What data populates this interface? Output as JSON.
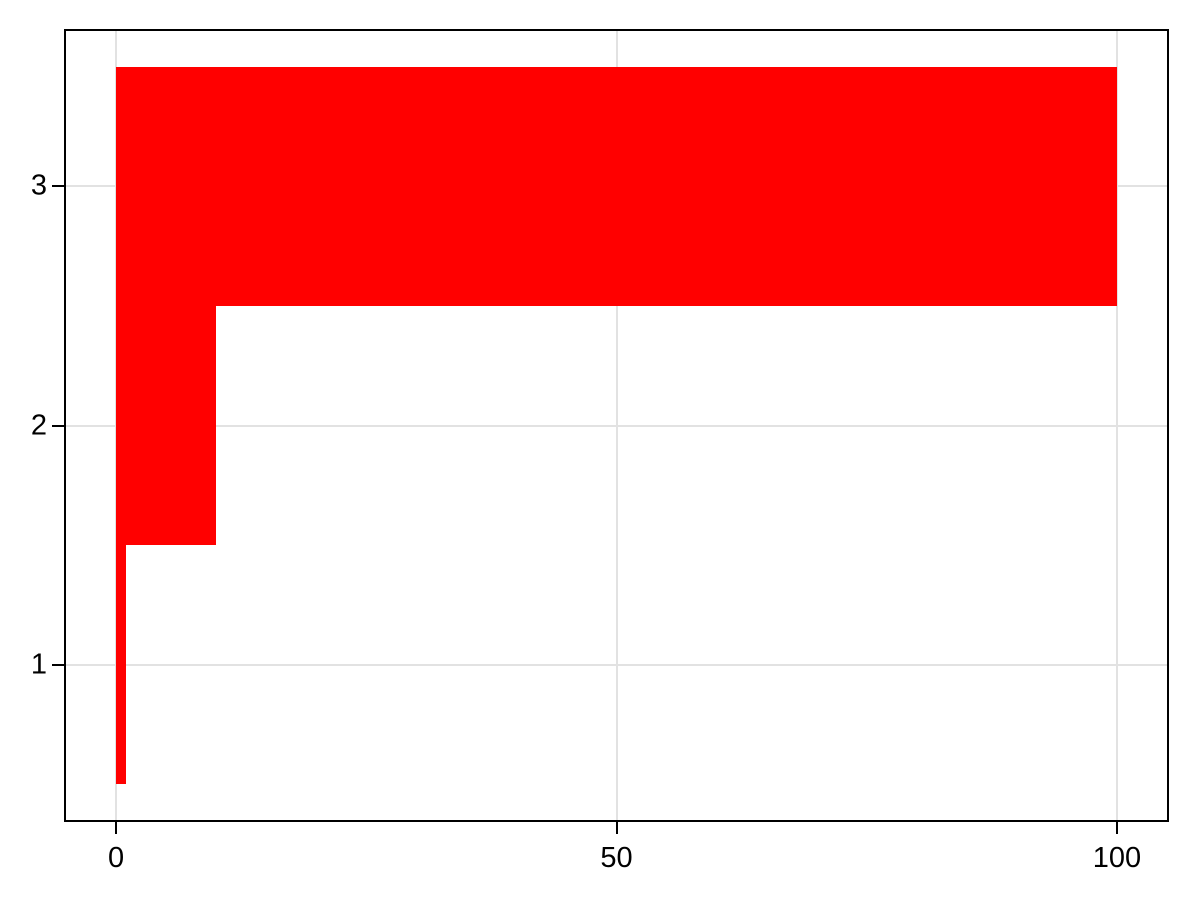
{
  "chart_data": {
    "type": "bar",
    "orientation": "horizontal",
    "categories": [
      1,
      2,
      3
    ],
    "values": [
      1,
      10,
      100
    ],
    "bar_width": 1.0,
    "bar_color": "#ff0000",
    "xlim": [
      -5,
      105
    ],
    "ylim": [
      0.35,
      3.65
    ],
    "xticks": [
      0,
      50,
      100
    ],
    "xtick_labels": [
      "0",
      "50",
      "100"
    ],
    "yticks": [
      1,
      2,
      3
    ],
    "ytick_labels": [
      "1",
      "2",
      "3"
    ],
    "grid": true,
    "grid_color": "#e2e2e2",
    "frame_color": "#000000",
    "tick_color": "#000000",
    "background_color": "#ffffff"
  }
}
